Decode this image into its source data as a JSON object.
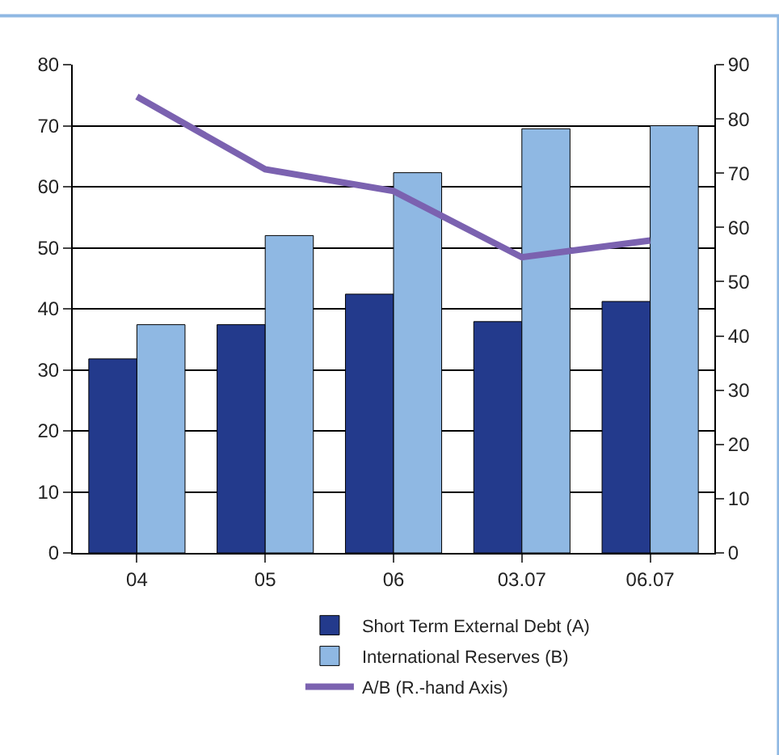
{
  "chart_data": {
    "type": "bar",
    "categories": [
      "04",
      "05",
      "06",
      "03.07",
      "06.07"
    ],
    "series": [
      {
        "name": "Short Term External Debt (A)",
        "color": "#233a8c",
        "values": [
          31.8,
          37.4,
          42.4,
          37.9,
          41.2
        ]
      },
      {
        "name": "International Reserves (B)",
        "color": "#8fb8e3",
        "values": [
          37.4,
          52.0,
          62.3,
          69.5,
          70.0
        ]
      },
      {
        "name": "A/B (R.-hand Axis)",
        "color": "#7b62b0",
        "type": "line",
        "axis": "y2",
        "values": [
          84.1,
          70.7,
          66.7,
          54.5,
          57.6
        ]
      }
    ],
    "ylim": [
      0,
      80
    ],
    "yticks": [
      0,
      10,
      20,
      30,
      40,
      50,
      60,
      70,
      80
    ],
    "y2lim": [
      0,
      90
    ],
    "y2ticks": [
      0,
      10,
      20,
      30,
      40,
      50,
      60,
      70,
      80,
      90
    ],
    "grid": "y",
    "legend": "bottom",
    "marker": "none",
    "line_style": "solid"
  }
}
